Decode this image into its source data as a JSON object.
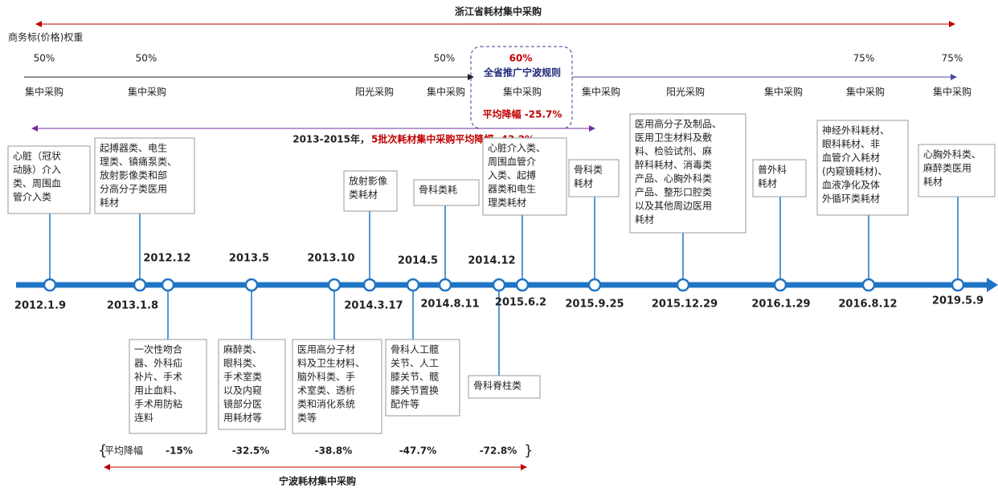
{
  "zhejiang": {
    "title": "浙江省耗材集中采购",
    "weight_label": "商务标(价格)权重",
    "weights": [
      "50%",
      "50%",
      "50%",
      "60%",
      "75%",
      "75%"
    ],
    "rule": "全省推广宁波规则",
    "rule_drop": "平均降幅 -25.7%",
    "methods": [
      "集中采购",
      "集中采购",
      "阳光采购",
      "集中采购",
      "集中采购",
      "集中采购",
      "阳光采购",
      "集中采购",
      "集中采购",
      "集中采购"
    ],
    "summary_years": "2013-2015年，",
    "summary": "5批次耗材集中采购平均降幅 -43.2%"
  },
  "timeline": {
    "events": [
      {
        "date": "2012.1.9",
        "items": [
          "心脏（冠状",
          "动脉）介入",
          "类、周围血",
          "管介入类"
        ]
      },
      {
        "date": "2013.1.8",
        "items": [
          "起搏器类、电生",
          "理类、镇痛泵类、",
          "放射影像类和部",
          "分高分子类医用",
          "耗材"
        ]
      },
      {
        "date": "2012.12",
        "items": [
          "一次性吻合",
          "器、外科疝",
          "补片、手术",
          "用止血料、",
          "手术用防粘",
          "连料"
        ]
      },
      {
        "date": "2013.5",
        "items": [
          "麻醉类、",
          "眼科类、",
          "手术室类",
          "以及内窥",
          "镜部分医",
          "用耗材等"
        ]
      },
      {
        "date": "2013.10",
        "items": [
          "医用高分子材",
          "料及卫生材料、",
          "脑外科类、手",
          "术室类、透析",
          "类和消化系统",
          "类等"
        ]
      },
      {
        "date": "2014.3.17",
        "items": [
          "放射影像",
          "类耗材"
        ]
      },
      {
        "date": "2014.5",
        "items": [
          "骨科人工髋",
          "关节、人工",
          "膝关节、髋",
          "膝关节置换",
          "配件等"
        ]
      },
      {
        "date": "2014.8.11",
        "items": [
          "骨科类耗"
        ]
      },
      {
        "date": "2014.12",
        "items": [
          "骨科脊柱类"
        ]
      },
      {
        "date": "2015.6.2",
        "items": [
          "心脏介入类、",
          "周围血管介",
          "入类、起搏",
          "器类和电生",
          "理类耗材"
        ]
      },
      {
        "date": "2015.9.25",
        "items": [
          "骨科类",
          "耗材"
        ]
      },
      {
        "date": "2015.12.29",
        "items": [
          "医用高分子及制品、",
          "医用卫生材料及敷",
          "料、检验试剂、麻",
          "醉科耗材、消毒类",
          "产品、心胸外科类",
          "产品、整形口腔类",
          "以及其他周边医用",
          "耗材"
        ]
      },
      {
        "date": "2016.1.29",
        "items": [
          "普外科",
          "耗材"
        ]
      },
      {
        "date": "2016.8.12",
        "items": [
          "神经外科耗材、",
          "眼科耗材、非",
          "血管介入耗材",
          "(内窥镜耗材)、",
          "血液净化及体",
          "外循环类耗材"
        ]
      },
      {
        "date": "2019.5.9",
        "items": [
          "心胸外科类、",
          "麻醉类医用",
          "耗材"
        ]
      }
    ]
  },
  "ningbo": {
    "title": "宁波耗材集中采购",
    "drop_label": "平均降幅",
    "drops": [
      "-15%",
      "-32.5%",
      "-38.8%",
      "-47.7%",
      "-72.8%"
    ]
  }
}
